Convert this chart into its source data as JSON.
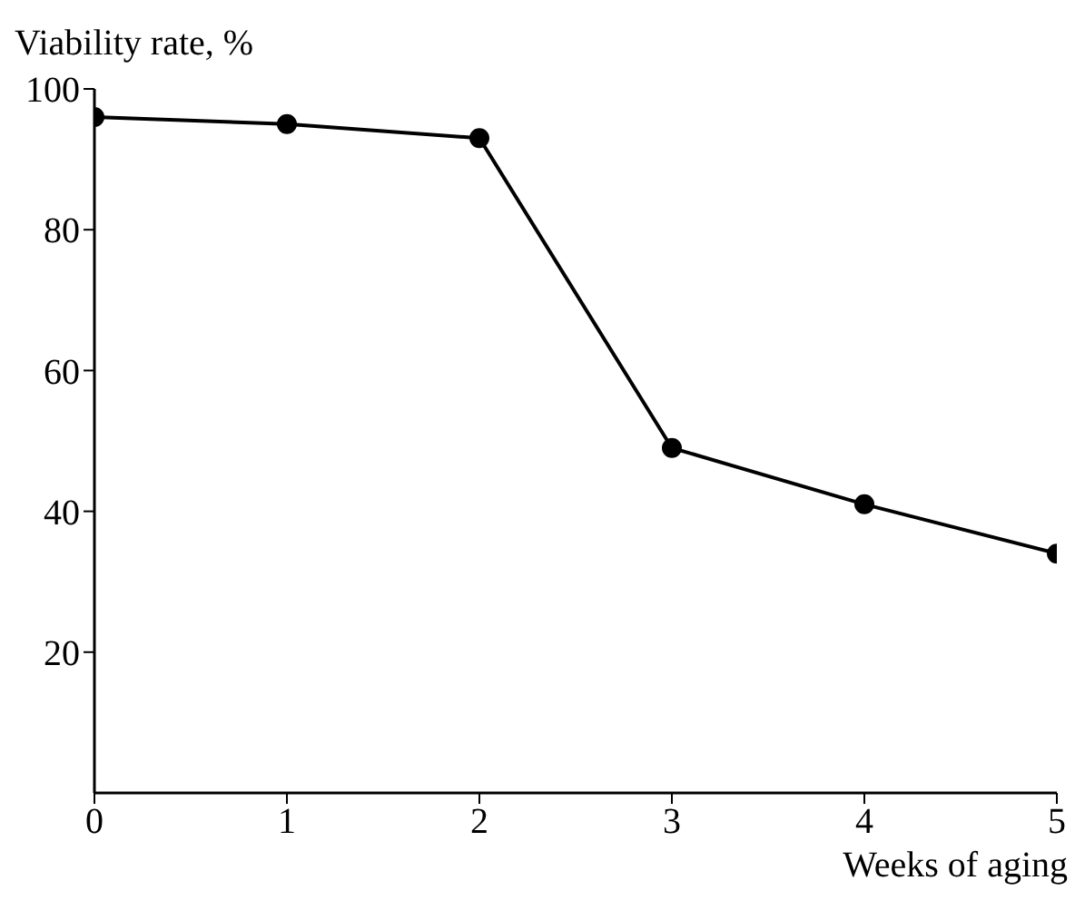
{
  "chart_data": {
    "type": "line",
    "xlabel": "Weeks of aging",
    "ylabel": "Viability rate, %",
    "x": [
      0,
      1,
      2,
      3,
      4,
      5
    ],
    "series": [
      {
        "color": "#000000",
        "values": [
          96,
          95,
          93,
          49,
          41,
          34
        ]
      }
    ],
    "xlim": [
      0,
      5
    ],
    "xticks": [
      0,
      1,
      2,
      3,
      4,
      5
    ],
    "ylim": [
      0,
      100
    ],
    "yticks": [
      20,
      40,
      60,
      80,
      100
    ],
    "marker": "circle",
    "line_style": "solid",
    "grid": false,
    "legend": false
  }
}
